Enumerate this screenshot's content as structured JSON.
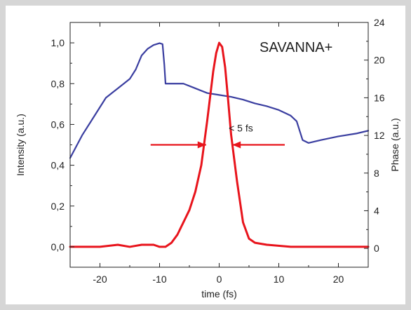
{
  "chart_data": {
    "type": "line",
    "annotation_title": "SAVANNA+",
    "annotation_width": "< 5 fs",
    "xlabel": "time (fs)",
    "ylabel_left": "Intensity (a.u.)",
    "ylabel_right": "Phase (a.u.)",
    "xlim": [
      -25,
      25
    ],
    "ylim_left": [
      -0.1,
      1.1
    ],
    "ylim_right": [
      -2,
      24
    ],
    "x_ticks": [
      "-20",
      "-10",
      "0",
      "10",
      "20"
    ],
    "x_tick_values": [
      -20,
      -10,
      0,
      10,
      20
    ],
    "y_left_ticks": [
      "0,0",
      "0,2",
      "0,4",
      "0,6",
      "0,8",
      "1,0"
    ],
    "y_left_tick_values": [
      0,
      0.2,
      0.4,
      0.6,
      0.8,
      1.0
    ],
    "y_right_ticks": [
      "0",
      "4",
      "8",
      "12",
      "16",
      "20",
      "24"
    ],
    "y_right_tick_values": [
      0,
      4,
      8,
      12,
      16,
      20,
      24
    ],
    "grid": false,
    "colors": {
      "intensity": "#e8141c",
      "phase": "#3a3ea0",
      "background": "#d6d6d6"
    },
    "series": [
      {
        "axis": "left",
        "x": [
          -25,
          -20,
          -17,
          -15,
          -13,
          -11,
          -10,
          -9,
          -8,
          -7,
          -6,
          -5,
          -4,
          -3,
          -2,
          -1.5,
          -1,
          -0.5,
          0,
          0.5,
          1,
          1.5,
          2,
          3,
          4,
          5,
          6,
          8,
          12,
          20,
          25
        ],
        "y": [
          0.0,
          0.0,
          0.01,
          0.0,
          0.01,
          0.01,
          0.0,
          0.0,
          0.02,
          0.06,
          0.12,
          0.18,
          0.27,
          0.4,
          0.62,
          0.74,
          0.86,
          0.95,
          1.0,
          0.98,
          0.88,
          0.72,
          0.55,
          0.32,
          0.12,
          0.04,
          0.02,
          0.01,
          0.0,
          0.0,
          0.0
        ]
      },
      {
        "axis": "right",
        "x": [
          -25,
          -23,
          -21,
          -19,
          -17,
          -15,
          -14,
          -13,
          -12,
          -11,
          -10,
          -9.5,
          -9.2,
          -9,
          -8,
          -6,
          -4,
          -2,
          0,
          2,
          4,
          6,
          8,
          10,
          12,
          13,
          14,
          15,
          17,
          20,
          23,
          25
        ],
        "y": [
          9.6,
          12,
          14,
          16,
          17,
          18,
          19,
          20.5,
          21.2,
          21.6,
          21.8,
          21.7,
          19.5,
          17.5,
          17.5,
          17.5,
          17,
          16.5,
          16.3,
          16.1,
          15.8,
          15.4,
          15.1,
          14.7,
          14.1,
          13.5,
          11.5,
          11.2,
          11.5,
          11.9,
          12.2,
          12.5
        ]
      }
    ]
  }
}
